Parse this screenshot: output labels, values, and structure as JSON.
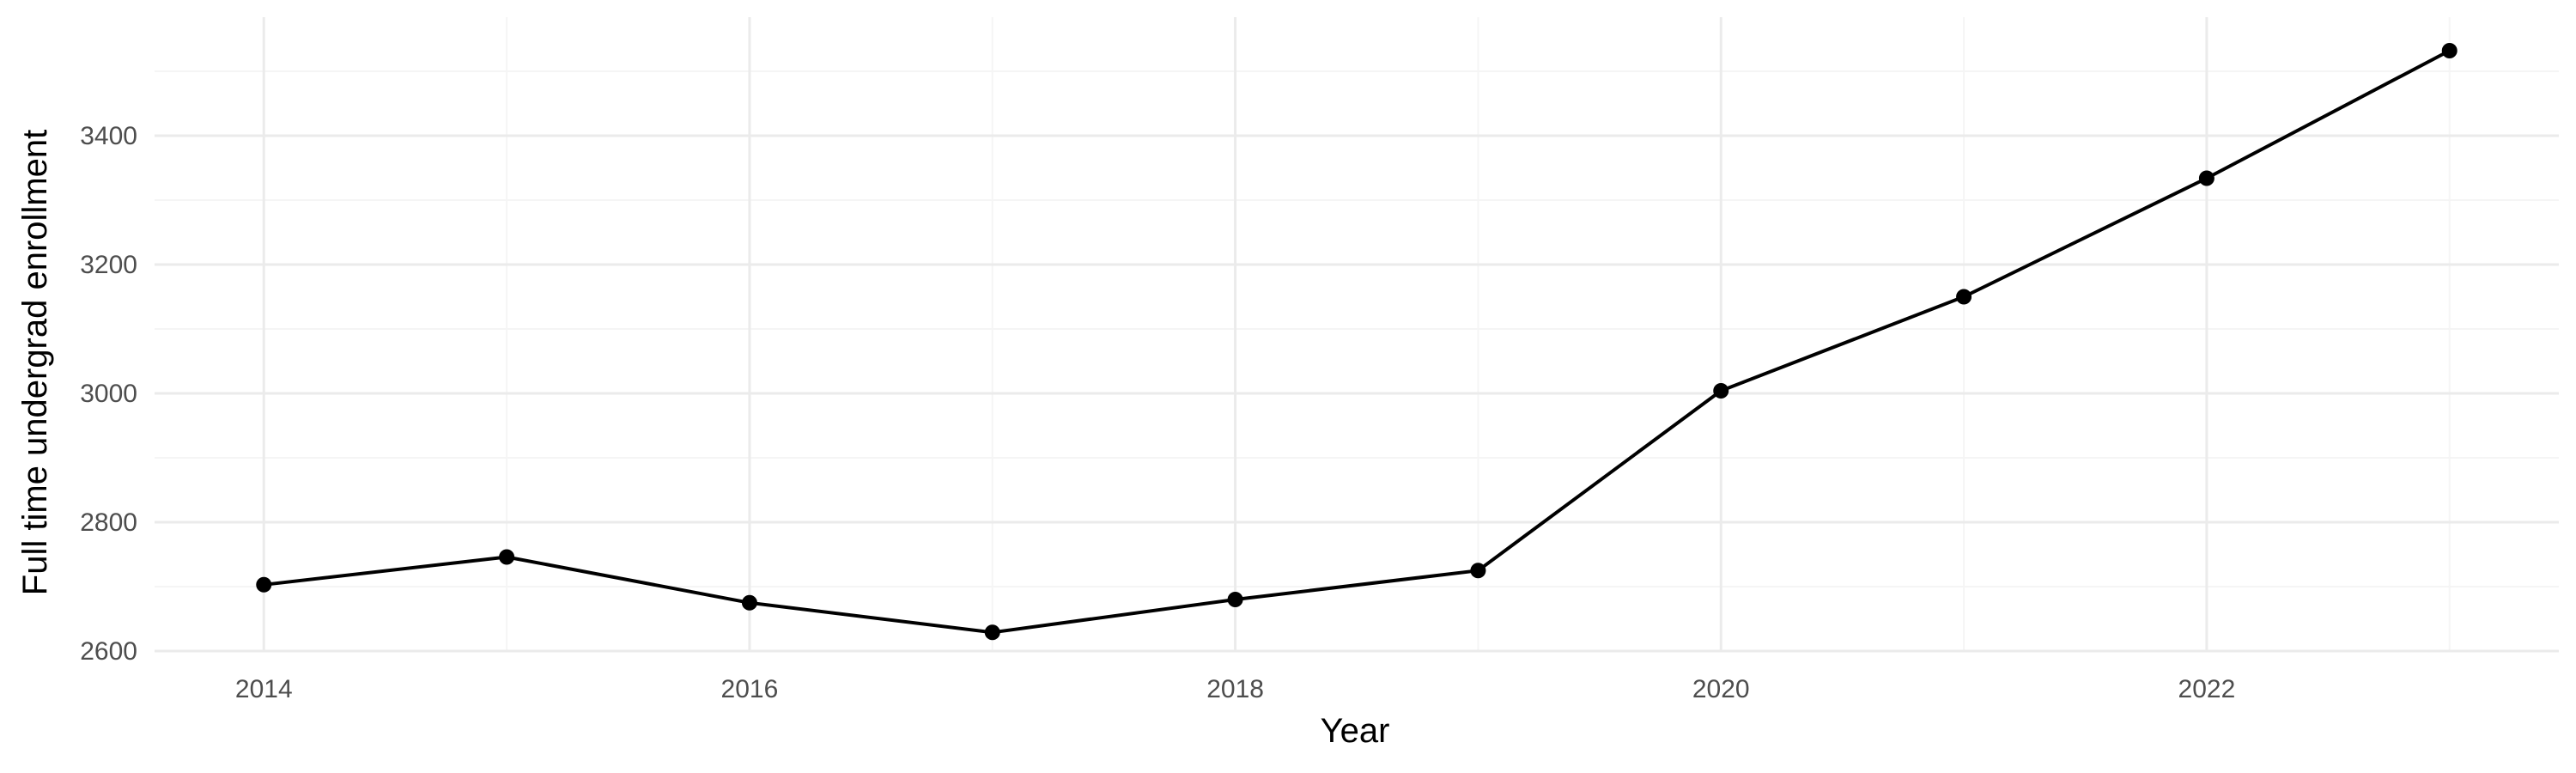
{
  "chart_data": {
    "type": "line",
    "title": "",
    "xlabel": "Year",
    "ylabel": "Full time undergrad enrollment",
    "x": [
      2014,
      2015,
      2016,
      2017,
      2018,
      2019,
      2020,
      2021,
      2022,
      2023
    ],
    "series": [
      {
        "values": [
          2703,
          2746,
          2675,
          2629,
          2680,
          2725,
          3004,
          3150,
          3334,
          3532
        ]
      }
    ],
    "xlim": [
      2013.55,
      2023.45
    ],
    "ylim": [
      2600,
      3532
    ],
    "xticks": [
      "2014",
      "2016",
      "2018",
      "2020",
      "2022"
    ],
    "yticks": [
      "2600",
      "2800",
      "3000",
      "3200",
      "3400"
    ],
    "grid": true,
    "legend": "none",
    "colors": {
      "line": "#000000",
      "point": "#000000",
      "grid_major": "#ebebeb",
      "grid_minor": "#f5f5f5",
      "tick_text": "#4d4d4d",
      "background": "#ffffff"
    }
  }
}
